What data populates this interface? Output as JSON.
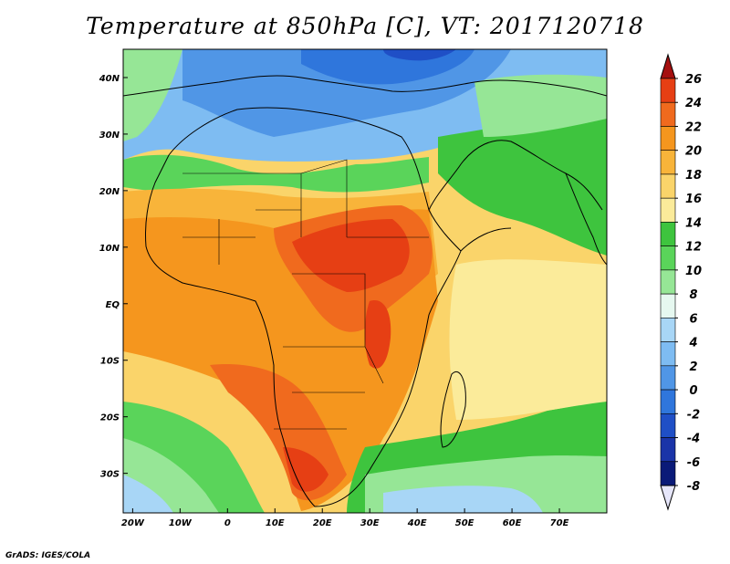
{
  "title": "Temperature at 850hPa [C], VT: 2017120718",
  "credit": "GrADS: IGES/COLA",
  "map": {
    "lat_labels": [
      "40N",
      "30N",
      "20N",
      "10N",
      "EQ",
      "10S",
      "20S",
      "30S"
    ],
    "lat_values": [
      40,
      30,
      20,
      10,
      0,
      -10,
      -20,
      -30
    ],
    "lon_labels": [
      "20W",
      "10W",
      "0",
      "10E",
      "20E",
      "30E",
      "40E",
      "50E",
      "60E",
      "70E"
    ],
    "lon_values": [
      -20,
      -10,
      0,
      10,
      20,
      30,
      40,
      50,
      60,
      70
    ],
    "lon_range": [
      -22,
      80
    ],
    "lat_range": [
      -37,
      45
    ]
  },
  "colorbar": {
    "levels": [
      "26",
      "24",
      "22",
      "20",
      "18",
      "16",
      "14",
      "12",
      "10",
      "8",
      "6",
      "4",
      "2",
      "0",
      "-2",
      "-4",
      "-6",
      "-8"
    ],
    "colors": [
      "#a50f0f",
      "#e63f14",
      "#f06a1e",
      "#f5961e",
      "#f8b43a",
      "#fad46a",
      "#fbeb9a",
      "#3ec43e",
      "#5ad45a",
      "#96e696",
      "#e6f8f0",
      "#a8d6f6",
      "#7ebcf2",
      "#5096e6",
      "#2f76dc",
      "#1f4fc6",
      "#1a34a8",
      "#0a1a78",
      "#e6e6fa"
    ]
  }
}
